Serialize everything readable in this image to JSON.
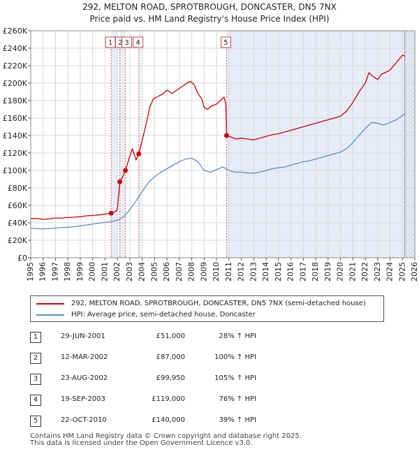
{
  "chart_data": {
    "type": "line",
    "title": "292, MELTON ROAD, SPROTBROUGH, DONCASTER, DN5 7NX",
    "subtitle": "Price paid vs. HM Land Registry's House Price Index (HPI)",
    "xlim": [
      1995,
      2026
    ],
    "ylim": [
      0,
      260000
    ],
    "y_ticks": [
      0,
      20000,
      40000,
      60000,
      80000,
      100000,
      120000,
      140000,
      160000,
      180000,
      200000,
      220000,
      240000,
      260000
    ],
    "y_tick_labels": [
      "£0",
      "£20K",
      "£40K",
      "£60K",
      "£80K",
      "£100K",
      "£120K",
      "£140K",
      "£160K",
      "£180K",
      "£200K",
      "£220K",
      "£240K",
      "£260K"
    ],
    "x_ticks": [
      1995,
      1996,
      1997,
      1998,
      1999,
      2000,
      2001,
      2002,
      2003,
      2004,
      2005,
      2006,
      2007,
      2008,
      2009,
      2010,
      2011,
      2012,
      2013,
      2014,
      2015,
      2016,
      2017,
      2018,
      2019,
      2020,
      2021,
      2022,
      2023,
      2024,
      2025,
      2026
    ],
    "x_tick_labels": [
      "1995",
      "1996",
      "1997",
      "1998",
      "1999",
      "2000",
      "2001",
      "2002",
      "2003",
      "2004",
      "2005",
      "2006",
      "2007",
      "2008",
      "2009",
      "2010",
      "2011",
      "2012",
      "2013",
      "2014",
      "2015",
      "2016",
      "2017",
      "2018",
      "2019",
      "2020",
      "2021",
      "2022",
      "2023",
      "2024",
      "2025",
      "2026"
    ],
    "grid": true,
    "future_from": 2025.2,
    "shaded_ranges": [
      {
        "from": 2001.49,
        "to": 2001.97
      },
      {
        "from": 2002.2,
        "to": 2002.64
      },
      {
        "from": 2003.72,
        "to": 2003.9
      },
      {
        "from": 2010.81,
        "to": 2026
      }
    ],
    "series": [
      {
        "name": "292, MELTON ROAD, SPROTBROUGH, DONCASTER, DN5 7NX (semi-detached house)",
        "color": "#cc0000",
        "x": [
          1995.0,
          1995.5,
          1996.0,
          1996.5,
          1997.0,
          1997.5,
          1998.0,
          1998.5,
          1999.0,
          1999.5,
          2000.0,
          2000.5,
          2001.0,
          2001.49,
          2001.7,
          2001.95,
          2002.0,
          2002.19,
          2002.4,
          2002.64,
          2002.9,
          2003.2,
          2003.5,
          2003.72,
          2004.0,
          2004.3,
          2004.6,
          2004.9,
          2005.3,
          2005.7,
          2006.0,
          2006.4,
          2006.8,
          2007.2,
          2007.6,
          2007.9,
          2008.2,
          2008.5,
          2008.8,
          2009.0,
          2009.3,
          2009.6,
          2010.0,
          2010.3,
          2010.6,
          2010.75,
          2010.81,
          2011.2,
          2011.6,
          2012.0,
          2012.5,
          2013.0,
          2013.5,
          2014.0,
          2014.5,
          2015.0,
          2015.5,
          2016.0,
          2016.5,
          2017.0,
          2017.5,
          2018.0,
          2018.5,
          2019.0,
          2019.5,
          2020.0,
          2020.5,
          2021.0,
          2021.5,
          2022.0,
          2022.3,
          2022.6,
          2023.0,
          2023.3,
          2023.6,
          2024.0,
          2024.3,
          2024.6,
          2025.0,
          2025.2
        ],
        "values": [
          45000,
          45000,
          44000,
          44500,
          45500,
          45500,
          46000,
          46500,
          47000,
          48000,
          48500,
          49000,
          50000,
          51000,
          52000,
          54000,
          57000,
          87000,
          92000,
          99950,
          112000,
          125000,
          112000,
          119000,
          135000,
          152000,
          172000,
          182000,
          185000,
          188000,
          192000,
          188000,
          192000,
          196000,
          200000,
          202000,
          198000,
          188000,
          182000,
          172000,
          170000,
          174000,
          176000,
          180000,
          184000,
          176000,
          140000,
          138000,
          136000,
          137000,
          136000,
          135000,
          137000,
          139000,
          141000,
          142000,
          144000,
          146000,
          148000,
          150000,
          152000,
          154000,
          156000,
          158000,
          160000,
          162000,
          168000,
          178000,
          190000,
          200000,
          212000,
          208000,
          204000,
          210000,
          212000,
          215000,
          220000,
          225000,
          232000,
          231000
        ]
      },
      {
        "name": "HPI: Average price, semi-detached house, Doncaster",
        "color": "#5b8ed0",
        "x": [
          1995.0,
          1995.5,
          1996.0,
          1996.5,
          1997.0,
          1997.5,
          1998.0,
          1998.5,
          1999.0,
          1999.5,
          2000.0,
          2000.5,
          2001.0,
          2001.5,
          2002.0,
          2002.5,
          2003.0,
          2003.5,
          2004.0,
          2004.5,
          2005.0,
          2005.5,
          2006.0,
          2006.5,
          2007.0,
          2007.5,
          2008.0,
          2008.5,
          2009.0,
          2009.5,
          2010.0,
          2010.5,
          2011.0,
          2011.5,
          2012.0,
          2012.5,
          2013.0,
          2013.5,
          2014.0,
          2014.5,
          2015.0,
          2015.5,
          2016.0,
          2016.5,
          2017.0,
          2017.5,
          2018.0,
          2018.5,
          2019.0,
          2019.5,
          2020.0,
          2020.5,
          2021.0,
          2021.5,
          2022.0,
          2022.5,
          2023.0,
          2023.5,
          2024.0,
          2024.5,
          2025.0,
          2025.2
        ],
        "values": [
          34000,
          33500,
          33000,
          33500,
          34000,
          34500,
          35000,
          35500,
          36500,
          37500,
          38500,
          39500,
          40500,
          41500,
          43000,
          47000,
          55000,
          65000,
          76000,
          86000,
          93000,
          98000,
          102000,
          106000,
          110000,
          113000,
          114000,
          110000,
          100000,
          98000,
          101000,
          104000,
          100000,
          98000,
          98000,
          97000,
          97000,
          98000,
          100000,
          102000,
          103000,
          104000,
          106000,
          108000,
          110000,
          111000,
          113000,
          115000,
          117000,
          119000,
          121000,
          125000,
          132000,
          140000,
          148000,
          155000,
          154000,
          152000,
          155000,
          158000,
          163000,
          165000
        ]
      }
    ],
    "sale_markers": [
      {
        "label": "1",
        "x": 2001.49,
        "y": 51000
      },
      {
        "label": "2",
        "x": 2002.19,
        "y": 87000
      },
      {
        "label": "3",
        "x": 2002.64,
        "y": 99950
      },
      {
        "label": "4",
        "x": 2003.72,
        "y": 119000
      },
      {
        "label": "5",
        "x": 2010.81,
        "y": 140000
      }
    ]
  },
  "legend": {
    "property_label": "292, MELTON ROAD, SPROTBROUGH, DONCASTER, DN5 7NX (semi-detached house)",
    "hpi_label": "HPI: Average price, semi-detached house, Doncaster",
    "property_color": "#cc0000",
    "hpi_color": "#5b8ed0"
  },
  "sales": [
    {
      "num": "1",
      "date": "29-JUN-2001",
      "price": "£51,000",
      "hpi": "28% ↑ HPI"
    },
    {
      "num": "2",
      "date": "12-MAR-2002",
      "price": "£87,000",
      "hpi": "100% ↑ HPI"
    },
    {
      "num": "3",
      "date": "23-AUG-2002",
      "price": "£99,950",
      "hpi": "105% ↑ HPI"
    },
    {
      "num": "4",
      "date": "19-SEP-2003",
      "price": "£119,000",
      "hpi": "76% ↑ HPI"
    },
    {
      "num": "5",
      "date": "22-OCT-2010",
      "price": "£140,000",
      "hpi": "39% ↑ HPI"
    }
  ],
  "footer": {
    "line1": "Contains HM Land Registry data © Crown copyright and database right 2025.",
    "line2": "This data is licensed under the Open Government Licence v3.0."
  }
}
